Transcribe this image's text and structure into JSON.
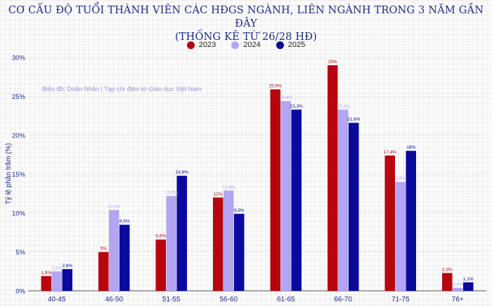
{
  "chart_data": {
    "type": "bar",
    "title_line1": "CƠ CẤU ĐỘ TUỔI THÀNH VIÊN CÁC HĐGS NGÀNH, LIÊN NGÀNH TRONG 3 NĂM GẦN ĐÂY",
    "title_line2": "(THỐNG KÊ TỪ 26/28 HĐ)",
    "ylabel": "Tỷ lệ phần trăm (%)",
    "xlabel": "",
    "ylim": [
      0,
      30
    ],
    "yticks": [
      "0%",
      "5%",
      "10%",
      "15%",
      "20%",
      "25%",
      "30%"
    ],
    "ytick_values": [
      0,
      5,
      10,
      15,
      20,
      25,
      30
    ],
    "grid": true,
    "legend_position": "top-center",
    "credit": "Biểu đồ: Doãn Nhân | Tạp chí điện tử Giáo dục Việt Nam",
    "categories": [
      "40-45",
      "46-50",
      "51-55",
      "56-60",
      "61-65",
      "66-70",
      "71-75",
      "76+"
    ],
    "series": [
      {
        "name": "2023",
        "color": "#b8060f",
        "values": [
          1.9,
          5,
          6.6,
          12,
          25.9,
          29,
          17.4,
          2.3
        ],
        "labels": [
          "1,9%",
          "5%",
          "6,6%",
          "12%",
          "25,9%",
          "29%",
          "17,4%",
          "2,3%"
        ]
      },
      {
        "name": "2024",
        "color": "#b3a5f2",
        "values": [
          2.5,
          10.4,
          12.2,
          12.9,
          24.4,
          23.3,
          14,
          0.4
        ],
        "labels": [
          "2,5%",
          "10,4%",
          "12,2%",
          "12,9%",
          "24,4%",
          "23,3%",
          "14%",
          "0,4%"
        ]
      },
      {
        "name": "2025",
        "color": "#0a0a9e",
        "values": [
          2.8,
          8.5,
          14.8,
          9.9,
          23.3,
          21.6,
          18,
          1.1
        ],
        "labels": [
          "2,8%",
          "8,5%",
          "14,8%",
          "9,9%",
          "23,3%",
          "21,6%",
          "18%",
          "1,1%"
        ]
      }
    ]
  }
}
